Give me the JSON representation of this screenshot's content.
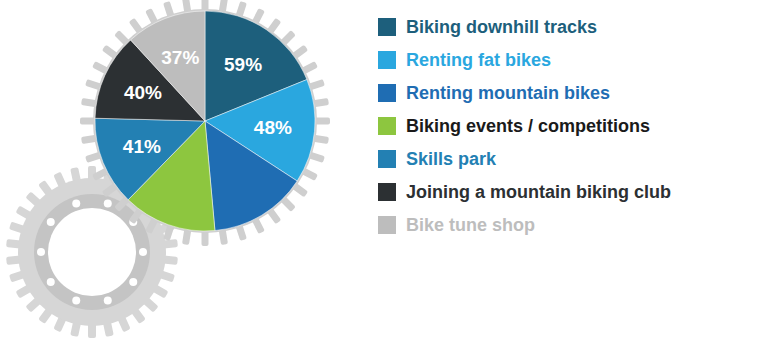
{
  "chart_data": {
    "type": "pie",
    "categories": [
      "Biking downhill tracks",
      "Renting fat bikes",
      "Renting mountain bikes",
      "Biking events / competitions",
      "Skills park",
      "Joining a mountain biking club",
      "Bike tune shop"
    ],
    "values": [
      59,
      48,
      45,
      43,
      41,
      40,
      37
    ],
    "value_labels": [
      "59%",
      "48%",
      null,
      null,
      "41%",
      "40%",
      "37%"
    ],
    "colors": [
      "#1d5f7c",
      "#2aa7df",
      "#1f6db3",
      "#8dc63f",
      "#2380b3",
      "#2c3033",
      "#bdbdbd"
    ],
    "data_labels": true,
    "legend": "right"
  }
}
